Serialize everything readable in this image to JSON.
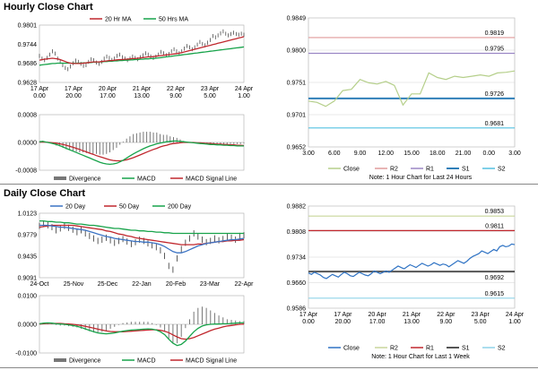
{
  "sections": {
    "hourly_title": "Hourly Close Chart",
    "daily_title": "Daily Close Chart"
  },
  "colors": {
    "ma_fast": "#c0272d",
    "ma_slow": "#17a34a",
    "ma_long": "#17a34a",
    "day20": "#3b73c4",
    "close_line": "#b5cf8a",
    "close_line_daily": "#2f73c4",
    "r2": "#e09a9a",
    "r1": "#9a86c4",
    "s1": "#2f7fb8",
    "s2": "#52c0e0",
    "r2_daily": "#c9d59a",
    "r1_daily": "#c0272d",
    "s1_daily": "#555555",
    "s2_daily": "#8fd3e8",
    "divergence": "#777777",
    "macd": "#17a34a",
    "signal": "#c0272d"
  },
  "chart_data": [
    {
      "id": "hourly_price",
      "type": "line",
      "title": "",
      "legend": [
        "20 Hr MA",
        "50 Hrs MA"
      ],
      "ylim": [
        0.9628,
        0.9801
      ],
      "yticks": [
        "0.9801",
        "0.9744",
        "0.9686",
        "0.9628"
      ],
      "xticks": [
        "17 Apr\n0.00",
        "17 Apr\n20.00",
        "20 Apr\n17.00",
        "21 Apr\n13.00",
        "22 Apr\n9.00",
        "23 Apr\n5.00",
        "24 Apr\n1.00"
      ],
      "close": [
        0.9708,
        0.97,
        0.9695,
        0.9702,
        0.9712,
        0.9722,
        0.9715,
        0.97,
        0.969,
        0.968,
        0.9672,
        0.9668,
        0.9676,
        0.9686,
        0.9694,
        0.969,
        0.9684,
        0.9678,
        0.968,
        0.969,
        0.9698,
        0.9695,
        0.9688,
        0.9684,
        0.969,
        0.97,
        0.9706,
        0.9702,
        0.9696,
        0.97,
        0.9708,
        0.9712,
        0.9704,
        0.97,
        0.9695,
        0.97,
        0.9706,
        0.9702,
        0.9698,
        0.9704,
        0.971,
        0.9716,
        0.9712,
        0.9706,
        0.9702,
        0.9706,
        0.9712,
        0.972,
        0.9716,
        0.971,
        0.9714,
        0.9722,
        0.9728,
        0.9722,
        0.9716,
        0.9722,
        0.973,
        0.9738,
        0.9734,
        0.9728,
        0.9734,
        0.9742,
        0.975,
        0.9744,
        0.974,
        0.9748,
        0.9756,
        0.9768,
        0.9764,
        0.977,
        0.9776,
        0.9782,
        0.9775,
        0.977,
        0.9774,
        0.9778,
        0.9774,
        0.9772,
        0.9775,
        0.9772
      ],
      "ma20": [
        0.9695,
        0.9697,
        0.9698,
        0.9699,
        0.97,
        0.9701,
        0.97,
        0.9699,
        0.9697,
        0.9694,
        0.9691,
        0.9688,
        0.9686,
        0.9685,
        0.9685,
        0.9685,
        0.9685,
        0.9686,
        0.9687,
        0.9688,
        0.9689,
        0.969,
        0.969,
        0.969,
        0.9691,
        0.9692,
        0.9693,
        0.9694,
        0.9694,
        0.9695,
        0.9696,
        0.9697,
        0.9697,
        0.9698,
        0.9698,
        0.9699,
        0.97,
        0.97,
        0.9701,
        0.9702,
        0.9703,
        0.9704,
        0.9705,
        0.9705,
        0.9706,
        0.9707,
        0.9708,
        0.9709,
        0.971,
        0.9711,
        0.9712,
        0.9713,
        0.9714,
        0.9715,
        0.9716,
        0.9718,
        0.972,
        0.9722,
        0.9724,
        0.9726,
        0.9728,
        0.973,
        0.9732,
        0.9734,
        0.9736,
        0.9738,
        0.974,
        0.9742,
        0.9744,
        0.9746,
        0.9748,
        0.975,
        0.9752,
        0.9754,
        0.9756,
        0.9758,
        0.976,
        0.9762,
        0.9764,
        0.9766
      ],
      "ma50": [
        0.968,
        0.9681,
        0.9682,
        0.9683,
        0.9684,
        0.9685,
        0.9685,
        0.9686,
        0.9686,
        0.9686,
        0.9686,
        0.9686,
        0.9686,
        0.9686,
        0.9686,
        0.9686,
        0.9686,
        0.9687,
        0.9687,
        0.9688,
        0.9688,
        0.9689,
        0.9689,
        0.969,
        0.969,
        0.9691,
        0.9691,
        0.9692,
        0.9692,
        0.9693,
        0.9693,
        0.9694,
        0.9694,
        0.9695,
        0.9695,
        0.9696,
        0.9696,
        0.9697,
        0.9697,
        0.9698,
        0.9698,
        0.9699,
        0.9699,
        0.97,
        0.97,
        0.9701,
        0.9702,
        0.9703,
        0.9704,
        0.9705,
        0.9706,
        0.9707,
        0.9708,
        0.9709,
        0.971,
        0.9711,
        0.9712,
        0.9713,
        0.9714,
        0.9715,
        0.9716,
        0.9717,
        0.9718,
        0.9719,
        0.972,
        0.9721,
        0.9722,
        0.9723,
        0.9724,
        0.9725,
        0.9726,
        0.9727,
        0.9728,
        0.9729,
        0.973,
        0.9731,
        0.9732,
        0.9733,
        0.9734,
        0.9735
      ]
    },
    {
      "id": "hourly_macd",
      "type": "line",
      "legend": [
        "Divergence",
        "MACD",
        "MACD Signal Line"
      ],
      "ylim": [
        -0.0008,
        0.0008
      ],
      "yticks": [
        "0.0008",
        "0.0000",
        "-0.0008"
      ],
      "macd": [
        2e-05,
        3e-05,
        1e-05,
        -1e-05,
        -3e-05,
        -6e-05,
        -9e-05,
        -0.00013,
        -0.00017,
        -0.00021,
        -0.00025,
        -0.00029,
        -0.00033,
        -0.00037,
        -0.00041,
        -0.00045,
        -0.00049,
        -0.00053,
        -0.00057,
        -0.0006,
        -0.00062,
        -0.00063,
        -0.00062,
        -0.0006,
        -0.00056,
        -0.00051,
        -0.00045,
        -0.00039,
        -0.00033,
        -0.00028,
        -0.00023,
        -0.00018,
        -0.00014,
        -0.0001,
        -7e-05,
        -4e-05,
        -2e-05,
        0.0,
        2e-05,
        3e-05,
        4e-05,
        4e-05,
        3e-05,
        2e-05,
        1e-05,
        0.0,
        -1e-05,
        -2e-05,
        -3e-05,
        -4e-05,
        -5e-05,
        -6e-05,
        -6e-05,
        -7e-05,
        -7e-05,
        -8e-05,
        -8e-05,
        -9e-05,
        -9e-05,
        -0.0001,
        -0.0001,
        -0.0001
      ],
      "signal": [
        1e-05,
        1e-05,
        1e-05,
        0.0,
        -1e-05,
        -2e-05,
        -4e-05,
        -6e-05,
        -8e-05,
        -0.00011,
        -0.00014,
        -0.00017,
        -0.0002,
        -0.00024,
        -0.00027,
        -0.00031,
        -0.00034,
        -0.00038,
        -0.00041,
        -0.00044,
        -0.00047,
        -0.0005,
        -0.00052,
        -0.00053,
        -0.00053,
        -0.00052,
        -0.0005,
        -0.00047,
        -0.00044,
        -0.0004,
        -0.00036,
        -0.00032,
        -0.00028,
        -0.00024,
        -0.0002,
        -0.00017,
        -0.00013,
        -0.0001,
        -8e-05,
        -5e-05,
        -3e-05,
        -2e-05,
        -1e-05,
        0.0,
        0.0,
        0.0,
        0.0,
        -1e-05,
        -1e-05,
        -2e-05,
        -3e-05,
        -3e-05,
        -4e-05,
        -5e-05,
        -5e-05,
        -6e-05,
        -6e-05,
        -7e-05,
        -7e-05,
        -8e-05,
        -8e-05,
        -9e-05
      ]
    },
    {
      "id": "hourly_pivot",
      "type": "line",
      "title": "",
      "legend": [
        "Close",
        "R2",
        "R1",
        "S1",
        "S2"
      ],
      "note": "Note: 1 Hour Chart for Last 24 Hours",
      "ylim": [
        0.9652,
        0.9849
      ],
      "yticks": [
        "0.9849",
        "0.9800",
        "0.9751",
        "0.9701",
        "0.9652"
      ],
      "xticks": [
        "3.00",
        "6.00",
        "9.00",
        "12.00",
        "15.00",
        "18.00",
        "21.00",
        "0.00",
        "3.00"
      ],
      "levels": {
        "R2": 0.9819,
        "R1": 0.9795,
        "S1": 0.9726,
        "S2": 0.9681
      },
      "level_labels": {
        "R2": "0.9819",
        "R1": "0.9795",
        "S1": "0.9726",
        "S2": "0.9681"
      },
      "close": [
        0.9722,
        0.972,
        0.9714,
        0.9722,
        0.9738,
        0.974,
        0.9755,
        0.975,
        0.9748,
        0.9752,
        0.9746,
        0.9716,
        0.9733,
        0.9733,
        0.9765,
        0.9758,
        0.9755,
        0.976,
        0.9758,
        0.976,
        0.9762,
        0.976,
        0.9765,
        0.9766,
        0.9768
      ]
    },
    {
      "id": "daily_price",
      "type": "line",
      "title": "",
      "legend": [
        "20 Day",
        "50 Day",
        "200 Day"
      ],
      "ylim": [
        0.9091,
        1.0123
      ],
      "yticks": [
        "1.0123",
        "0.9779",
        "0.9435",
        "0.9091"
      ],
      "xticks": [
        "24-Oct",
        "25-Nov",
        "25-Dec",
        "22-Jan",
        "20-Feb",
        "23-Mar",
        "22-Apr"
      ],
      "close": [
        0.992,
        0.995,
        0.993,
        0.99,
        0.985,
        0.988,
        0.992,
        0.989,
        0.986,
        0.982,
        0.985,
        0.98,
        0.976,
        0.972,
        0.968,
        0.97,
        0.973,
        0.969,
        0.965,
        0.968,
        0.971,
        0.967,
        0.963,
        0.966,
        0.97,
        0.968,
        0.964,
        0.961,
        0.958,
        0.953,
        0.944,
        0.928,
        0.922,
        0.94,
        0.955,
        0.965,
        0.972,
        0.98,
        0.975,
        0.97,
        0.966,
        0.968,
        0.972,
        0.969,
        0.971,
        0.975,
        0.973,
        0.97,
        0.976,
        0.977
      ],
      "d20": [
        0.993,
        0.993,
        0.993,
        0.992,
        0.991,
        0.99,
        0.99,
        0.989,
        0.988,
        0.987,
        0.986,
        0.985,
        0.983,
        0.981,
        0.979,
        0.977,
        0.975,
        0.974,
        0.972,
        0.971,
        0.97,
        0.969,
        0.968,
        0.967,
        0.967,
        0.966,
        0.966,
        0.965,
        0.964,
        0.962,
        0.959,
        0.955,
        0.951,
        0.949,
        0.949,
        0.951,
        0.954,
        0.957,
        0.96,
        0.962,
        0.964,
        0.965,
        0.966,
        0.967,
        0.968,
        0.969,
        0.97,
        0.97,
        0.971,
        0.972
      ],
      "d50": [
        0.99,
        0.991,
        0.992,
        0.993,
        0.993,
        0.993,
        0.993,
        0.993,
        0.993,
        0.992,
        0.991,
        0.99,
        0.989,
        0.988,
        0.987,
        0.986,
        0.984,
        0.983,
        0.981,
        0.979,
        0.978,
        0.976,
        0.975,
        0.973,
        0.972,
        0.971,
        0.97,
        0.969,
        0.968,
        0.967,
        0.966,
        0.965,
        0.964,
        0.963,
        0.962,
        0.962,
        0.962,
        0.962,
        0.963,
        0.963,
        0.964,
        0.965,
        0.966,
        0.967,
        0.967,
        0.968,
        0.968,
        0.969,
        0.969,
        0.97
      ],
      "d200": [
        1.0,
        1.0,
        0.999,
        0.999,
        0.998,
        0.998,
        0.997,
        0.997,
        0.996,
        0.995,
        0.995,
        0.994,
        0.993,
        0.993,
        0.992,
        0.991,
        0.99,
        0.989,
        0.988,
        0.988,
        0.987,
        0.986,
        0.985,
        0.985,
        0.984,
        0.984,
        0.983,
        0.983,
        0.982,
        0.982,
        0.981,
        0.981,
        0.98,
        0.98,
        0.98,
        0.98,
        0.98,
        0.98,
        0.98,
        0.98,
        0.98,
        0.98,
        0.98,
        0.98,
        0.98,
        0.98,
        0.98,
        0.98,
        0.98,
        0.98
      ]
    },
    {
      "id": "daily_macd",
      "type": "line",
      "legend": [
        "Divergence",
        "MACD",
        "MACD Signal Line"
      ],
      "ylim": [
        -0.01,
        0.01
      ],
      "yticks": [
        "0.0100",
        "0.0000",
        "-0.0100"
      ],
      "macd": [
        0.0002,
        0.0004,
        0.0005,
        0.0004,
        0.0002,
        0.0001,
        0.0,
        -0.0002,
        -0.0004,
        -0.0007,
        -0.0011,
        -0.0016,
        -0.0021,
        -0.0026,
        -0.003,
        -0.0032,
        -0.0033,
        -0.0032,
        -0.003,
        -0.0027,
        -0.0024,
        -0.0022,
        -0.002,
        -0.0019,
        -0.0018,
        -0.0017,
        -0.0016,
        -0.0017,
        -0.002,
        -0.0026,
        -0.0036,
        -0.0052,
        -0.0066,
        -0.0074,
        -0.007,
        -0.0058,
        -0.0042,
        -0.0026,
        -0.0014,
        -0.0006,
        -0.0002,
        0.0,
        0.0001,
        0.0001,
        0.0002,
        0.0002,
        0.0003,
        0.0004,
        0.0005,
        0.0006
      ],
      "signal": [
        0.0001,
        0.0002,
        0.0003,
        0.0003,
        0.0003,
        0.0003,
        0.0002,
        0.0001,
        0.0,
        -0.0002,
        -0.0004,
        -0.0007,
        -0.001,
        -0.0013,
        -0.0017,
        -0.002,
        -0.0023,
        -0.0025,
        -0.0026,
        -0.0026,
        -0.0026,
        -0.0025,
        -0.0024,
        -0.0023,
        -0.0022,
        -0.0021,
        -0.002,
        -0.0019,
        -0.0019,
        -0.0021,
        -0.0024,
        -0.0029,
        -0.0037,
        -0.0044,
        -0.005,
        -0.0052,
        -0.005,
        -0.0046,
        -0.004,
        -0.0034,
        -0.0028,
        -0.0022,
        -0.0017,
        -0.0013,
        -0.0009,
        -0.0006,
        -0.0004,
        -0.0002,
        0.0,
        0.0001
      ]
    },
    {
      "id": "daily_pivot",
      "type": "line",
      "title": "",
      "legend": [
        "Close",
        "R2",
        "R1",
        "S1",
        "S2"
      ],
      "note": "Note: 1 Hour Chart for Last 1 Week",
      "ylim": [
        0.9586,
        0.9882
      ],
      "yticks": [
        "0.9882",
        "0.9808",
        "0.9734",
        "0.9660",
        "0.9586"
      ],
      "xticks": [
        "17 Apr\n0.00",
        "17 Apr\n20.00",
        "20 Apr\n17.00",
        "21 Apr\n13.00",
        "22 Apr\n9.00",
        "23 Apr\n5.00",
        "24 Apr\n1.00"
      ],
      "levels": {
        "R2": 0.9853,
        "R1": 0.9811,
        "S1": 0.9692,
        "S2": 0.9615
      },
      "level_labels": {
        "R2": "0.9853",
        "R1": "0.9811",
        "S1": "0.9692",
        "S2": "0.9615"
      },
      "close": [
        0.9688,
        0.9684,
        0.969,
        0.9686,
        0.9682,
        0.9675,
        0.9672,
        0.9678,
        0.9684,
        0.968,
        0.9676,
        0.9684,
        0.969,
        0.9686,
        0.968,
        0.9678,
        0.9684,
        0.969,
        0.9686,
        0.9682,
        0.968,
        0.9686,
        0.9694,
        0.969,
        0.9686,
        0.969,
        0.9694,
        0.969,
        0.9696,
        0.9702,
        0.9708,
        0.9704,
        0.97,
        0.9706,
        0.9712,
        0.9708,
        0.9704,
        0.971,
        0.9716,
        0.9712,
        0.9708,
        0.9712,
        0.9718,
        0.9714,
        0.971,
        0.9714,
        0.9712,
        0.9706,
        0.9712,
        0.9718,
        0.9724,
        0.972,
        0.9716,
        0.9722,
        0.973,
        0.9736,
        0.974,
        0.9744,
        0.9752,
        0.9748,
        0.9744,
        0.975,
        0.9756,
        0.9752,
        0.9764,
        0.9768,
        0.9764,
        0.9766,
        0.9772,
        0.977
      ]
    }
  ]
}
